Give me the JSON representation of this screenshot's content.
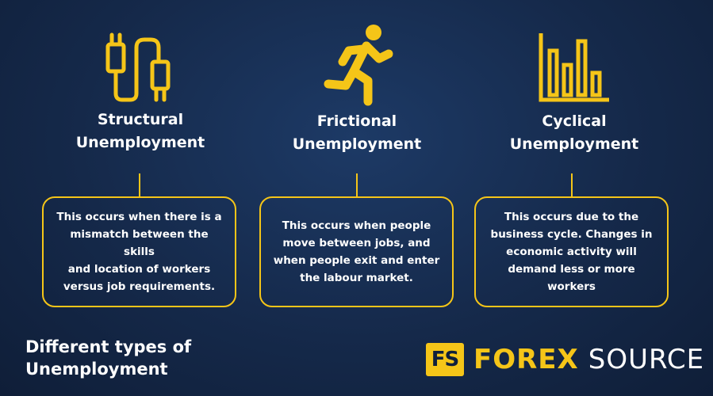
{
  "accent_color": "#f5c518",
  "background_color": "#15294a",
  "columns": [
    {
      "icon": "plug-cable-icon",
      "title_line1": "Structural",
      "title_line2": "Unemployment",
      "desc_lines": [
        "This occurs when there is a",
        "mismatch between the skills",
        "and location of workers",
        "versus job requirements."
      ]
    },
    {
      "icon": "running-person-icon",
      "title_line1": "Frictional",
      "title_line2": "Unemployment",
      "desc_lines": [
        "This occurs when people",
        "move between jobs, and",
        "when people exit and enter",
        "the labour market."
      ]
    },
    {
      "icon": "bar-chart-icon",
      "title_line1": "Cyclical",
      "title_line2": "Unemployment",
      "desc_lines": [
        "This occurs due to the",
        "business cycle. Changes in",
        "economic activity will",
        "demand less or more",
        "workers"
      ]
    }
  ],
  "footer": {
    "title_line1": "Different types of",
    "title_line2": "Unemployment"
  },
  "logo": {
    "badge": "FS",
    "word1": "FOREX",
    "word2": "SOURCE"
  }
}
